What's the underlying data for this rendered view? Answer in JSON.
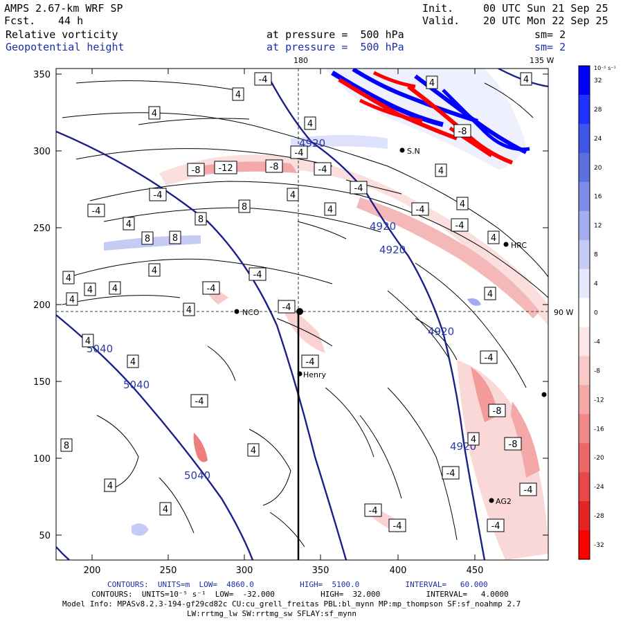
{
  "header": {
    "model_title": "AMPS 2.67-km WRF SP",
    "fcst_label": "Fcst.",
    "fcst_value": "44 h",
    "init_label": "Init.",
    "init_value": "00 UTC Sun 21 Sep 25",
    "valid_label": "Valid.",
    "valid_value": "20 UTC Mon 22 Sep 25",
    "field1_name": "Relative vorticity",
    "field1_level": "at pressure =  500 hPa",
    "field1_smooth": "sm= 2",
    "field2_name": "Geopotential height",
    "field2_level": "at pressure =  500 hPa",
    "field2_smooth": "sm= 2"
  },
  "map_labels": {
    "lon_180": "180",
    "lat_135W": "135 W",
    "lat_90W": "90 W",
    "stations": [
      "NCO",
      "Henry",
      "HRC",
      "AG2",
      "S.N"
    ]
  },
  "axes": {
    "x_ticks": [
      "200",
      "250",
      "300",
      "350",
      "400",
      "450"
    ],
    "y_ticks": [
      "350",
      "300",
      "250",
      "200",
      "150",
      "100",
      "50"
    ]
  },
  "colorbar": {
    "units": "10⁻⁵ s⁻¹",
    "levels": [
      "32",
      "28",
      "24",
      "20",
      "16",
      "12",
      "8",
      "4",
      "0",
      "-4",
      "-8",
      "-12",
      "-16",
      "-20",
      "-24",
      "-28",
      "-32"
    ],
    "colors": [
      "#0000ff",
      "#1f33ff",
      "#3d55e8",
      "#5a6fe0",
      "#7d8be6",
      "#a2acee",
      "#c6cbf5",
      "#e6e8fb",
      "#ffffff",
      "#fde6e6",
      "#f9c8c8",
      "#f5a8a8",
      "#f08888",
      "#ec6868",
      "#e84848",
      "#e42424",
      "#ff0000"
    ]
  },
  "contour_labels": {
    "height": [
      "4920",
      "4920",
      "4920",
      "4920",
      "4920",
      "5040",
      "5040",
      "5040"
    ],
    "vorticity": [
      "4",
      "-4",
      "8",
      "-8",
      "-12"
    ]
  },
  "footer": {
    "line1": "CONTOURS:  UNITS=m  LOW=  4860.0          HIGH=  5100.0          INTERVAL=   60.000",
    "line2": "CONTOURS:  UNITS=10⁻⁵ s⁻¹  LOW=  -32.000          HIGH=  32.000          INTERVAL=   4.0000",
    "line3": "Model Info: MPASv8.2.3-194-gf29cd82c CU:cu_grell_freitas PBL:bl_mynn MP:mp_thompson SF:sf_noahmp 2.7",
    "line4": "LW:rrtmg_lw SW:rrtmg_sw SFLAY:sf_mynn"
  }
}
